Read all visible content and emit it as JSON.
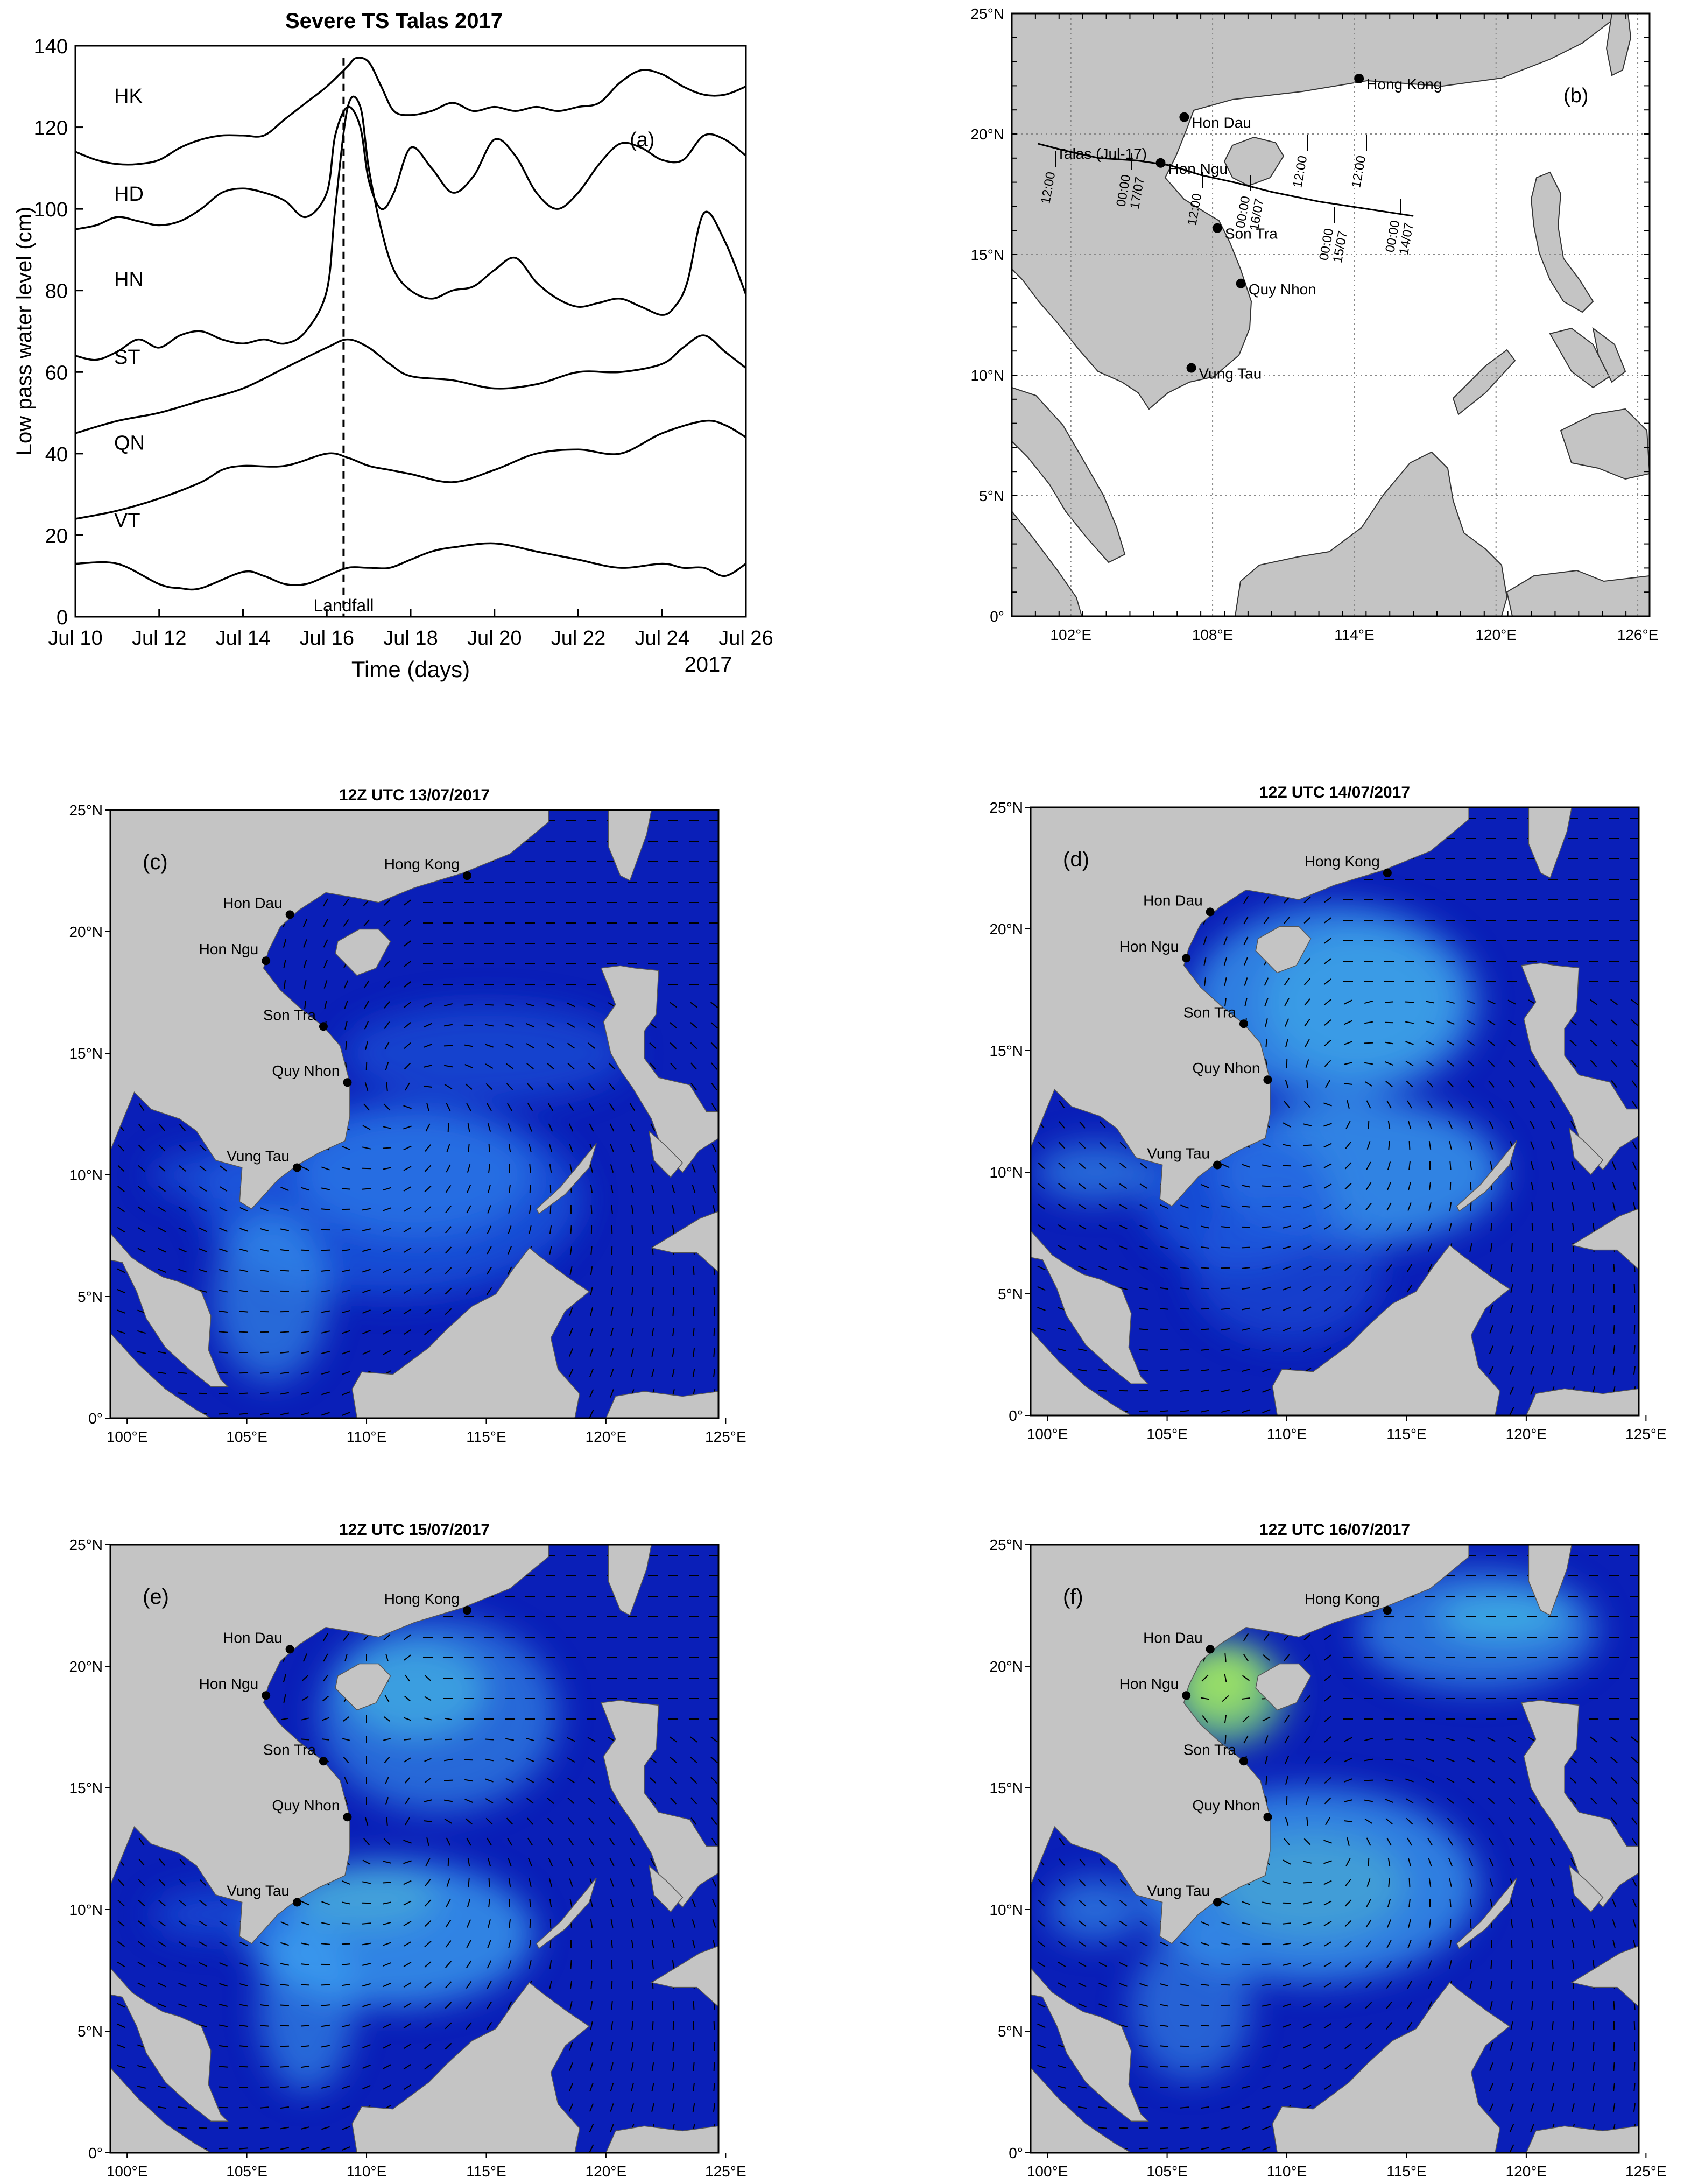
{
  "colors": {
    "land": "#c4c4c4",
    "sea_deep": "#0a1fb8",
    "sea_mid": "#1f5ee0",
    "sea_light": "#3fa6f2",
    "sea_cyan": "#52e6d8",
    "sea_green": "#7be07a",
    "sea_yellow": "#e6e23a",
    "line": "#000000",
    "grid": "#8c8c8c",
    "panel_b_water": "#ffffff",
    "panel_b_land": "#c4c4c4"
  },
  "chart_data": [
    {
      "panel": "a",
      "type": "line",
      "title": "Severe TS Talas 2017",
      "panel_label": "(a)",
      "xlabel": "Time (days)",
      "ylabel": "Low pass water level (cm)",
      "year_label": "2017",
      "xlim": [
        10,
        26
      ],
      "ylim": [
        0,
        140
      ],
      "x_ticks": [
        10,
        12,
        14,
        16,
        18,
        20,
        22,
        24,
        26
      ],
      "x_tick_labels": [
        "Jul 10",
        "Jul 12",
        "Jul 14",
        "Jul 16",
        "Jul 18",
        "Jul 20",
        "Jul 22",
        "Jul 24",
        "Jul 26"
      ],
      "y_ticks": [
        0,
        20,
        40,
        60,
        80,
        100,
        120,
        140
      ],
      "landfall_x": 16.4,
      "landfall_label": "Landfall",
      "series": [
        {
          "name": "HK",
          "x": [
            10,
            10.5,
            11,
            11.5,
            12,
            12.5,
            13,
            13.5,
            14,
            14.5,
            15,
            15.5,
            16,
            16.5,
            16.7,
            17,
            17.3,
            17.6,
            18,
            18.5,
            19,
            19.5,
            20,
            20.5,
            21,
            21.5,
            22,
            22.5,
            23,
            23.5,
            24,
            24.5,
            25,
            25.5,
            26
          ],
          "y": [
            114,
            112,
            111,
            111,
            112,
            115,
            117,
            118,
            118,
            118,
            122,
            126,
            130,
            135,
            137,
            136,
            130,
            124,
            123,
            124,
            126,
            124,
            125,
            124,
            125,
            124,
            125,
            126,
            131,
            134,
            133,
            130,
            128,
            128,
            130
          ]
        },
        {
          "name": "HD",
          "x": [
            10,
            10.5,
            11,
            11.5,
            12,
            12.5,
            13,
            13.5,
            14,
            14.5,
            15,
            15.5,
            16,
            16.2,
            16.5,
            16.8,
            17,
            17.3,
            17.6,
            18,
            18.5,
            19,
            19.5,
            20,
            20.5,
            21,
            21.5,
            22,
            22.5,
            23,
            23.5,
            24,
            24.5,
            25,
            25.5,
            26
          ],
          "y": [
            95,
            96,
            98,
            97,
            96,
            97,
            100,
            104,
            105,
            104,
            102,
            98,
            104,
            118,
            125,
            120,
            107,
            100,
            104,
            115,
            110,
            104,
            108,
            117,
            113,
            104,
            100,
            104,
            111,
            116,
            115,
            112,
            112,
            118,
            117,
            113
          ]
        },
        {
          "name": "HN",
          "x": [
            10,
            10.5,
            11,
            11.5,
            12,
            12.5,
            13,
            13.5,
            14,
            14.5,
            15,
            15.5,
            16,
            16.2,
            16.5,
            16.8,
            17,
            17.3,
            17.6,
            18,
            18.5,
            19,
            19.5,
            20,
            20.5,
            21,
            21.5,
            22,
            22.5,
            23,
            23.5,
            24,
            24.3,
            24.6,
            25,
            25.5,
            26
          ],
          "y": [
            64,
            63,
            65,
            68,
            66,
            69,
            70,
            68,
            67,
            68,
            67,
            70,
            80,
            100,
            125,
            125,
            110,
            95,
            85,
            80,
            78,
            80,
            81,
            85,
            88,
            82,
            78,
            76,
            77,
            78,
            76,
            74,
            76,
            82,
            99,
            92,
            79
          ]
        },
        {
          "name": "ST",
          "x": [
            10,
            11,
            12,
            13,
            14,
            15,
            16,
            16.5,
            17,
            17.5,
            18,
            19,
            20,
            21,
            22,
            23,
            24,
            24.5,
            25,
            25.5,
            26
          ],
          "y": [
            45,
            48,
            50,
            53,
            56,
            61,
            66,
            68,
            66,
            62,
            59,
            58,
            56,
            57,
            60,
            60,
            62,
            66,
            69,
            65,
            61
          ]
        },
        {
          "name": "QN",
          "x": [
            10,
            11,
            12,
            13,
            13.5,
            14,
            15,
            16,
            16.5,
            17,
            17.5,
            18,
            19,
            20,
            21,
            22,
            23,
            24,
            25,
            25.5,
            26
          ],
          "y": [
            24,
            26,
            29,
            33,
            36,
            37,
            37,
            40,
            39,
            37,
            36,
            35,
            33,
            36,
            40,
            41,
            40,
            45,
            48,
            47,
            44
          ]
        },
        {
          "name": "VT",
          "x": [
            10,
            11,
            12,
            12.5,
            13,
            14,
            14.5,
            15,
            15.5,
            16,
            16.5,
            17,
            17.5,
            18,
            18.5,
            19,
            20,
            21,
            21.5,
            22,
            23,
            24,
            24.5,
            25,
            25.5,
            26
          ],
          "y": [
            13,
            13,
            8,
            7,
            7,
            11,
            10,
            8,
            8,
            10,
            12,
            12,
            12,
            14,
            16,
            17,
            18,
            16,
            15,
            14,
            12,
            13,
            12,
            12,
            10,
            13
          ]
        }
      ]
    },
    {
      "panel": "b",
      "type": "map",
      "panel_label": "(b)",
      "lon_ticks": [
        102,
        108,
        114,
        120,
        126
      ],
      "lon_tick_labels": [
        "102°E",
        "108°E",
        "114°E",
        "120°E",
        "126°E"
      ],
      "lat_ticks": [
        0,
        5,
        10,
        15,
        20,
        25
      ],
      "lat_tick_labels": [
        "0°",
        "5°N",
        "10°N",
        "15°N",
        "20°N",
        "25°N"
      ],
      "lon_range": [
        99.5,
        126.5
      ],
      "lat_range": [
        0,
        25
      ],
      "track_label": "Talas (Jul-17)",
      "track": [
        [
          116.5,
          16.6
        ],
        [
          114.5,
          16.9
        ],
        [
          112.5,
          17.2
        ],
        [
          110.5,
          17.6
        ],
        [
          108.9,
          18.0
        ],
        [
          107.5,
          18.3
        ],
        [
          106.2,
          18.7
        ],
        [
          104.8,
          18.9
        ],
        [
          103.2,
          19.0
        ],
        [
          101.8,
          19.3
        ],
        [
          100.6,
          19.6
        ]
      ],
      "track_time_labels": [
        "12:00",
        "00:00\n17/07",
        "12:00",
        "00:00\n16/07",
        "12:00",
        "00:00\n15/07",
        "12:00",
        "00:00\n14/07"
      ],
      "stations": [
        {
          "name": "Hong Kong",
          "lon": 114.2,
          "lat": 22.3
        },
        {
          "name": "Hon Dau",
          "lon": 106.8,
          "lat": 20.7
        },
        {
          "name": "Hon Ngu",
          "lon": 105.8,
          "lat": 18.8
        },
        {
          "name": "Son Tra",
          "lon": 108.2,
          "lat": 16.1
        },
        {
          "name": "Quy Nhon",
          "lon": 109.2,
          "lat": 13.8
        },
        {
          "name": "Vung Tau",
          "lon": 107.1,
          "lat": 10.3
        }
      ]
    },
    {
      "panel": "c",
      "type": "heatmap",
      "title": "12Z UTC 13/07/2017",
      "panel_label": "(c)",
      "lon_ticks": [
        100,
        105,
        110,
        115,
        120,
        125
      ],
      "lon_tick_labels": [
        "100°E",
        "105°E",
        "110°E",
        "115°E",
        "120°E",
        "125°E"
      ],
      "lat_ticks": [
        0,
        5,
        10,
        15,
        20,
        25
      ],
      "lat_tick_labels": [
        "0°",
        "5°N",
        "10°N",
        "15°N",
        "20°N",
        "25°N"
      ],
      "stations": [
        "Hong Kong",
        "Hon Dau",
        "Hon Ngu",
        "Son Tra",
        "Quy Nhon",
        "Vung Tau"
      ]
    },
    {
      "panel": "d",
      "type": "heatmap",
      "title": "12Z UTC 14/07/2017",
      "panel_label": "(d)",
      "lon_ticks": [
        100,
        105,
        110,
        115,
        120,
        125
      ],
      "lon_tick_labels": [
        "100°E",
        "105°E",
        "110°E",
        "115°E",
        "120°E",
        "125°E"
      ],
      "lat_ticks": [
        0,
        5,
        10,
        15,
        20,
        25
      ],
      "lat_tick_labels": [
        "0°",
        "5°N",
        "10°N",
        "15°N",
        "20°N",
        "25°N"
      ],
      "stations": [
        "Hong Kong",
        "Hon Dau",
        "Hon Ngu",
        "Son Tra",
        "Quy Nhon",
        "Vung Tau"
      ]
    },
    {
      "panel": "e",
      "type": "heatmap",
      "title": "12Z UTC 15/07/2017",
      "panel_label": "(e)",
      "lon_ticks": [
        100,
        105,
        110,
        115,
        120,
        125
      ],
      "lon_tick_labels": [
        "100°E",
        "105°E",
        "110°E",
        "115°E",
        "120°E",
        "125°E"
      ],
      "lat_ticks": [
        0,
        5,
        10,
        15,
        20,
        25
      ],
      "lat_tick_labels": [
        "0°",
        "5°N",
        "10°N",
        "15°N",
        "20°N",
        "25°N"
      ],
      "stations": [
        "Hong Kong",
        "Hon Dau",
        "Hon Ngu",
        "Son Tra",
        "Quy Nhon",
        "Vung Tau"
      ]
    },
    {
      "panel": "f",
      "type": "heatmap",
      "title": "12Z UTC 16/07/2017",
      "panel_label": "(f)",
      "lon_ticks": [
        100,
        105,
        110,
        115,
        120,
        125
      ],
      "lon_tick_labels": [
        "100°E",
        "105°E",
        "110°E",
        "115°E",
        "120°E",
        "125°E"
      ],
      "lat_ticks": [
        0,
        5,
        10,
        15,
        20,
        25
      ],
      "lat_tick_labels": [
        "0°",
        "5°N",
        "10°N",
        "15°N",
        "20°N",
        "25°N"
      ],
      "stations": [
        "Hong Kong",
        "Hon Dau",
        "Hon Ngu",
        "Son Tra",
        "Quy Nhon",
        "Vung Tau"
      ]
    }
  ]
}
